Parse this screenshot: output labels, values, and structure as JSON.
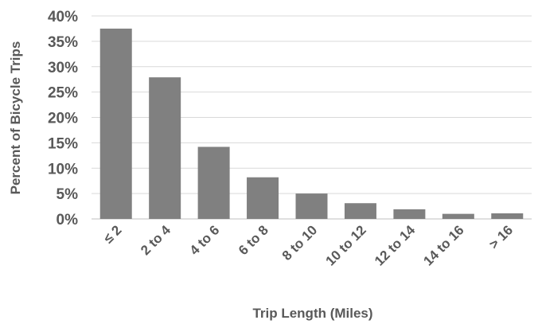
{
  "chart_data": {
    "type": "bar",
    "title": "",
    "xlabel": "Trip Length (Miles)",
    "ylabel": "Percent of Bicycle Trips",
    "categories": [
      "≤ 2",
      "2 to 4",
      "4 to 6",
      "6 to 8",
      "8 to 10",
      "10 to 12",
      "12 to 14",
      "14 to 16",
      "> 16"
    ],
    "values": [
      37.5,
      27.9,
      14.2,
      8.2,
      5.0,
      3.1,
      1.9,
      1.0,
      1.1
    ],
    "ylim": [
      0,
      40
    ],
    "yticks": [
      "0%",
      "5%",
      "10%",
      "15%",
      "20%",
      "25%",
      "30%",
      "35%",
      "40%"
    ],
    "grid": true,
    "legend": "none",
    "colors": {
      "bar": "#808080",
      "grid": "#d9d9d9",
      "text": "#595959"
    }
  }
}
